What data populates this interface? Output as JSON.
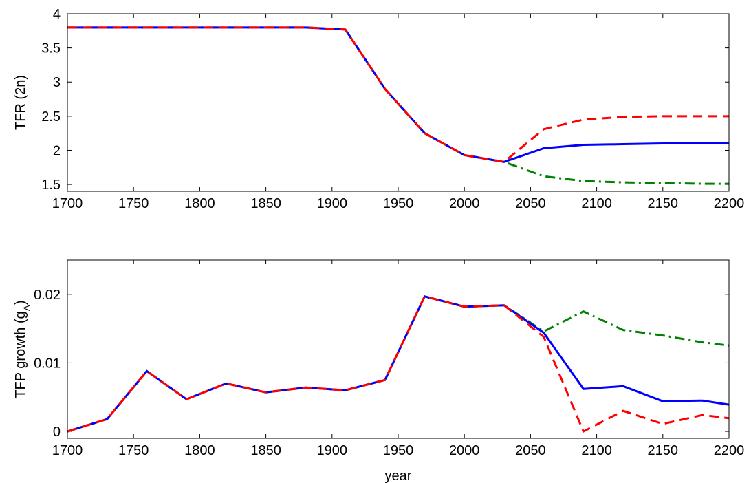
{
  "chart_data": [
    {
      "type": "line",
      "ylabel": [
        "TFR (2n)"
      ],
      "x": [
        1700,
        1730,
        1760,
        1790,
        1820,
        1850,
        1880,
        1910,
        1940,
        1970,
        2000,
        2030,
        2060,
        2090,
        2120,
        2150,
        2180,
        2210
      ],
      "xlim": [
        1700,
        2200
      ],
      "xticks": [
        1700,
        1750,
        1800,
        1850,
        1900,
        1950,
        2000,
        2050,
        2100,
        2150,
        2200
      ],
      "ylim": [
        1.4,
        4
      ],
      "yticks": [
        1.5,
        2,
        2.5,
        3,
        3.5,
        4
      ],
      "series": [
        {
          "color": "#008000",
          "style": "dashdot",
          "values": [
            3.8,
            3.8,
            3.8,
            3.8,
            3.8,
            3.8,
            3.8,
            3.77,
            2.9,
            2.25,
            1.93,
            1.83,
            1.62,
            1.55,
            1.53,
            1.52,
            1.51,
            1.51
          ]
        },
        {
          "color": "#0000ff",
          "style": "solid",
          "values": [
            3.8,
            3.8,
            3.8,
            3.8,
            3.8,
            3.8,
            3.8,
            3.77,
            2.9,
            2.25,
            1.93,
            1.83,
            2.03,
            2.08,
            2.09,
            2.1,
            2.1,
            2.1
          ]
        },
        {
          "color": "#ff0000",
          "style": "dashed",
          "values": [
            3.8,
            3.8,
            3.8,
            3.8,
            3.8,
            3.8,
            3.8,
            3.77,
            2.9,
            2.25,
            1.93,
            1.83,
            2.31,
            2.45,
            2.49,
            2.5,
            2.5,
            2.5
          ]
        }
      ]
    },
    {
      "type": "line",
      "ylabel": [
        "TFP growth (g",
        "A",
        ")"
      ],
      "xlabel": "year",
      "x": [
        1700,
        1730,
        1760,
        1790,
        1820,
        1850,
        1880,
        1910,
        1940,
        1970,
        2000,
        2030,
        2060,
        2090,
        2120,
        2150,
        2180,
        2210
      ],
      "xlim": [
        1700,
        2200
      ],
      "xticks": [
        1700,
        1750,
        1800,
        1850,
        1900,
        1950,
        2000,
        2050,
        2100,
        2150,
        2200
      ],
      "ylim": [
        -0.001,
        0.025
      ],
      "yticks": [
        0,
        0.01,
        0.02
      ],
      "series": [
        {
          "color": "#008000",
          "style": "dashdot",
          "values": [
            0,
            0.0018,
            0.0088,
            0.0047,
            0.007,
            0.0057,
            0.0064,
            0.006,
            0.0075,
            0.0197,
            0.0182,
            0.0184,
            0.0146,
            0.0175,
            0.0148,
            0.014,
            0.013,
            0.0123
          ]
        },
        {
          "color": "#0000ff",
          "style": "solid",
          "values": [
            0,
            0.0018,
            0.0088,
            0.0047,
            0.007,
            0.0057,
            0.0064,
            0.006,
            0.0075,
            0.0197,
            0.0182,
            0.0184,
            0.0144,
            0.0062,
            0.0066,
            0.0044,
            0.0045,
            0.0036
          ]
        },
        {
          "color": "#ff0000",
          "style": "dashed",
          "values": [
            0,
            0.0018,
            0.0088,
            0.0047,
            0.007,
            0.0057,
            0.0064,
            0.006,
            0.0075,
            0.0197,
            0.0182,
            0.0184,
            0.0138,
            0,
            0.003,
            0.0011,
            0.0024,
            0.0017
          ]
        }
      ]
    }
  ]
}
